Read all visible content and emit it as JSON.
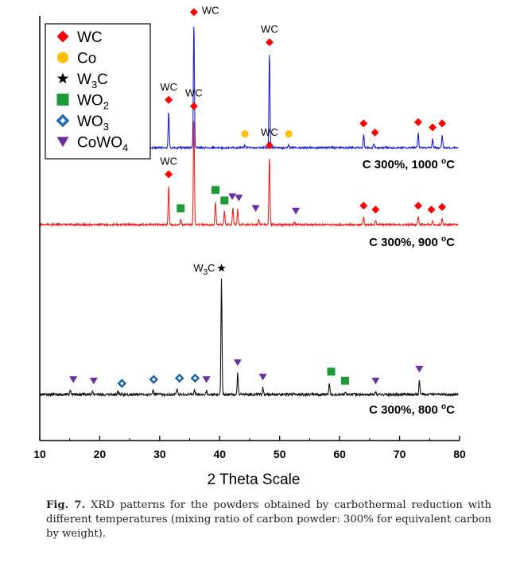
{
  "figure": {
    "caption_label": "Fig. 7.",
    "caption_text": " XRD patterns for the powders obtained by carbothermal reduction with different temperatures (mixing ratio of carbon powder: 300% for equivalent carbon by weight)."
  },
  "chart_data": {
    "type": "line",
    "xlabel": "2 Theta Scale",
    "ylabel": "",
    "xlim": [
      10,
      80
    ],
    "xticks": [
      10,
      20,
      30,
      40,
      50,
      60,
      70,
      80
    ],
    "grid": false,
    "legend_position": "top-left",
    "legend": [
      {
        "label": "WC",
        "marker": "diamond",
        "color": "#ff0000"
      },
      {
        "label": "Co",
        "marker": "circle",
        "color": "#ffc000"
      },
      {
        "label": "W3C",
        "base": "W",
        "sub": "3",
        "tail": "C",
        "marker": "star",
        "color": "#000000"
      },
      {
        "label": "WO2",
        "base": "WO",
        "sub": "2",
        "tail": "",
        "marker": "square",
        "color": "#1f9a3a"
      },
      {
        "label": "WO3",
        "base": "WO",
        "sub": "3",
        "tail": "",
        "marker": "diamond-outline",
        "color": "#1f78c8"
      },
      {
        "label": "CoWO4",
        "base": "CoWO",
        "sub": "4",
        "tail": "",
        "marker": "triangle-down",
        "color": "#6a2fa0"
      }
    ],
    "series": [
      {
        "name": "C 300%, 1000 °C",
        "label_main": "C 300%, 1000 ",
        "label_deg": "o",
        "label_unit": "C",
        "color": "#1e22d0",
        "peaks": [
          {
            "x": 31.5,
            "h": 0.28
          },
          {
            "x": 35.7,
            "h": 0.95
          },
          {
            "x": 44.2,
            "h": 0.02
          },
          {
            "x": 48.3,
            "h": 0.72
          },
          {
            "x": 51.5,
            "h": 0.02
          },
          {
            "x": 64.0,
            "h": 0.1
          },
          {
            "x": 65.7,
            "h": 0.03
          },
          {
            "x": 73.1,
            "h": 0.11
          },
          {
            "x": 75.5,
            "h": 0.07
          },
          {
            "x": 77.1,
            "h": 0.1
          }
        ],
        "markers": [
          {
            "x": 31.5,
            "type": "diamond",
            "label": "WC"
          },
          {
            "x": 35.7,
            "type": "diamond",
            "label": "WC"
          },
          {
            "x": 44.2,
            "type": "circle"
          },
          {
            "x": 48.3,
            "type": "diamond",
            "label": "WC"
          },
          {
            "x": 51.5,
            "type": "circle"
          },
          {
            "x": 64.0,
            "type": "diamond"
          },
          {
            "x": 65.9,
            "type": "diamond"
          },
          {
            "x": 73.1,
            "type": "diamond"
          },
          {
            "x": 75.5,
            "type": "diamond"
          },
          {
            "x": 77.1,
            "type": "diamond"
          }
        ]
      },
      {
        "name": "C 300%, 900 °C",
        "label_main": "C 300%, 900 ",
        "label_deg": "o",
        "label_unit": "C",
        "color": "#e8231f",
        "peaks": [
          {
            "x": 31.5,
            "h": 0.3
          },
          {
            "x": 33.5,
            "h": 0.04
          },
          {
            "x": 35.7,
            "h": 0.82
          },
          {
            "x": 39.3,
            "h": 0.18
          },
          {
            "x": 40.8,
            "h": 0.1
          },
          {
            "x": 42.2,
            "h": 0.13
          },
          {
            "x": 43.0,
            "h": 0.12
          },
          {
            "x": 46.5,
            "h": 0.04
          },
          {
            "x": 48.3,
            "h": 0.52
          },
          {
            "x": 52.5,
            "h": 0.02
          },
          {
            "x": 64.0,
            "h": 0.06
          },
          {
            "x": 66.0,
            "h": 0.03
          },
          {
            "x": 73.1,
            "h": 0.06
          },
          {
            "x": 75.5,
            "h": 0.03
          },
          {
            "x": 77.1,
            "h": 0.05
          }
        ],
        "markers": [
          {
            "x": 31.5,
            "type": "diamond",
            "label": "WC"
          },
          {
            "x": 33.5,
            "type": "square"
          },
          {
            "x": 35.7,
            "type": "diamond",
            "label": "WC"
          },
          {
            "x": 39.3,
            "type": "square"
          },
          {
            "x": 40.8,
            "type": "square"
          },
          {
            "x": 42.1,
            "type": "triangle"
          },
          {
            "x": 43.2,
            "type": "triangle"
          },
          {
            "x": 46.0,
            "type": "triangle"
          },
          {
            "x": 48.3,
            "type": "diamond",
            "label": "WC"
          },
          {
            "x": 52.7,
            "type": "triangle"
          },
          {
            "x": 64.0,
            "type": "diamond"
          },
          {
            "x": 66.0,
            "type": "diamond"
          },
          {
            "x": 73.1,
            "type": "diamond"
          },
          {
            "x": 75.3,
            "type": "diamond"
          },
          {
            "x": 77.1,
            "type": "diamond"
          }
        ]
      },
      {
        "name": "C 300%, 800 °C",
        "label_main": "C 300%, 800 ",
        "label_deg": "o",
        "label_unit": "C",
        "color": "#111111",
        "peaks": [
          {
            "x": 15.1,
            "h": 0.03
          },
          {
            "x": 18.8,
            "h": 0.02
          },
          {
            "x": 23.0,
            "h": 0.02
          },
          {
            "x": 28.9,
            "h": 0.03
          },
          {
            "x": 32.9,
            "h": 0.04
          },
          {
            "x": 35.8,
            "h": 0.04
          },
          {
            "x": 37.8,
            "h": 0.03
          },
          {
            "x": 40.3,
            "h": 0.88
          },
          {
            "x": 43.0,
            "h": 0.16
          },
          {
            "x": 47.2,
            "h": 0.05
          },
          {
            "x": 58.3,
            "h": 0.09
          },
          {
            "x": 61.0,
            "h": 0.02
          },
          {
            "x": 66.0,
            "h": 0.02
          },
          {
            "x": 73.3,
            "h": 0.11
          }
        ],
        "markers": [
          {
            "x": 15.6,
            "type": "triangle"
          },
          {
            "x": 19.0,
            "type": "triangle"
          },
          {
            "x": 23.7,
            "type": "diamond-outline"
          },
          {
            "x": 29.0,
            "type": "diamond-outline"
          },
          {
            "x": 33.3,
            "type": "diamond-outline"
          },
          {
            "x": 35.9,
            "type": "diamond-outline"
          },
          {
            "x": 37.8,
            "type": "triangle"
          },
          {
            "x": 40.3,
            "type": "star",
            "label_base": "W",
            "label_sub": "3",
            "label_tail": "C"
          },
          {
            "x": 43.0,
            "type": "triangle"
          },
          {
            "x": 47.2,
            "type": "triangle"
          },
          {
            "x": 58.6,
            "type": "square"
          },
          {
            "x": 60.9,
            "type": "square"
          },
          {
            "x": 66.0,
            "type": "triangle"
          },
          {
            "x": 73.3,
            "type": "triangle"
          }
        ]
      }
    ]
  }
}
